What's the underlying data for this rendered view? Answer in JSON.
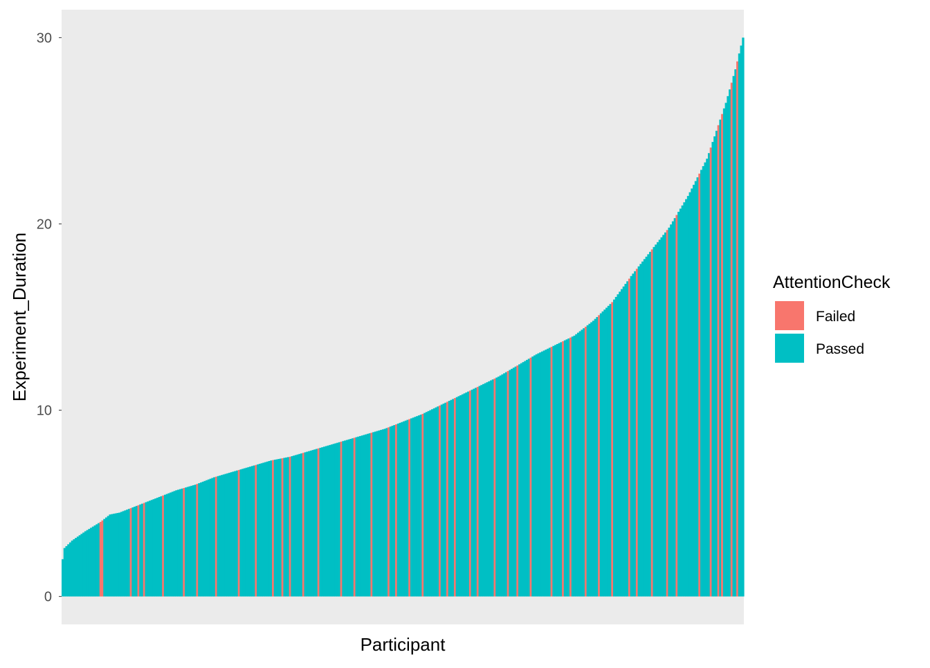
{
  "chart_data": {
    "type": "bar",
    "title": "",
    "xlabel": "Participant",
    "ylabel": "Experiment_Duration",
    "ylim": [
      -1.5,
      31.5
    ],
    "yticks": [
      0,
      10,
      20,
      30
    ],
    "ytick_labels": [
      "0",
      "10",
      "20",
      "30"
    ],
    "grid": false,
    "sorted": "ascending",
    "participant_count": 360,
    "colors": {
      "Failed": "#F8766D",
      "Passed": "#00BFC4",
      "panel": "#EBEBEB"
    },
    "legend": {
      "title": "AttentionCheck",
      "position": "right",
      "entries": [
        {
          "label": "Failed",
          "color": "#F8766D"
        },
        {
          "label": "Passed",
          "color": "#00BFC4"
        }
      ]
    },
    "duration_profile": [
      [
        0,
        2.0
      ],
      [
        1,
        2.6
      ],
      [
        5,
        3.0
      ],
      [
        12,
        3.5
      ],
      [
        20,
        4.0
      ],
      [
        25,
        4.4
      ],
      [
        30,
        4.5
      ],
      [
        40,
        4.9
      ],
      [
        50,
        5.3
      ],
      [
        60,
        5.7
      ],
      [
        70,
        6.0
      ],
      [
        80,
        6.4
      ],
      [
        90,
        6.7
      ],
      [
        100,
        7.0
      ],
      [
        110,
        7.3
      ],
      [
        120,
        7.5
      ],
      [
        130,
        7.8
      ],
      [
        140,
        8.1
      ],
      [
        150,
        8.4
      ],
      [
        160,
        8.7
      ],
      [
        170,
        9.0
      ],
      [
        180,
        9.4
      ],
      [
        190,
        9.8
      ],
      [
        200,
        10.3
      ],
      [
        210,
        10.8
      ],
      [
        220,
        11.3
      ],
      [
        230,
        11.8
      ],
      [
        240,
        12.4
      ],
      [
        250,
        13.0
      ],
      [
        260,
        13.5
      ],
      [
        270,
        14.0
      ],
      [
        280,
        14.8
      ],
      [
        290,
        15.8
      ],
      [
        300,
        17.2
      ],
      [
        310,
        18.5
      ],
      [
        320,
        19.8
      ],
      [
        330,
        21.5
      ],
      [
        340,
        23.5
      ],
      [
        350,
        26.5
      ],
      [
        355,
        28.3
      ],
      [
        359,
        30.0
      ]
    ],
    "failed_participants": [
      20,
      21,
      36,
      40,
      43,
      53,
      64,
      71,
      81,
      93,
      102,
      111,
      116,
      120,
      127,
      135,
      147,
      154,
      163,
      172,
      176,
      183,
      190,
      199,
      203,
      207,
      215,
      219,
      228,
      235,
      240,
      247,
      258,
      264,
      268,
      276,
      283,
      290,
      299,
      303,
      311,
      319,
      324,
      336,
      342,
      346,
      348,
      353,
      356
    ]
  }
}
